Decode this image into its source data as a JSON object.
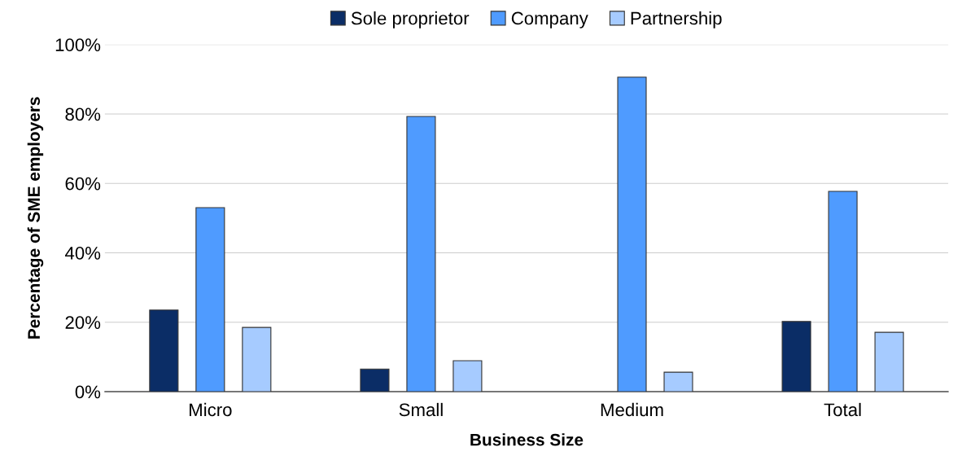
{
  "chart_data": {
    "type": "bar",
    "xlabel": "Business Size",
    "ylabel": "Percentage of SME employers",
    "categories": [
      "Micro",
      "Small",
      "Medium",
      "Total"
    ],
    "series": [
      {
        "name": "Sole proprietor",
        "color": "#0b2d66",
        "values": [
          23.5,
          6.5,
          null,
          20.2
        ]
      },
      {
        "name": "Company",
        "color": "#4f9bff",
        "values": [
          53,
          79.3,
          90.6,
          57.7
        ]
      },
      {
        "name": "Partnership",
        "color": "#a6cbff",
        "values": [
          18.5,
          8.9,
          5.6,
          17.1
        ]
      }
    ],
    "ylim": [
      0,
      100
    ],
    "yticks": [
      {
        "value": 0,
        "label": "0%"
      },
      {
        "value": 20,
        "label": "20%"
      },
      {
        "value": 40,
        "label": "40%"
      },
      {
        "value": 60,
        "label": "60%"
      },
      {
        "value": 80,
        "label": "80%"
      },
      {
        "value": 100,
        "label": "100%"
      }
    ],
    "grid": "y",
    "legend": "top"
  }
}
